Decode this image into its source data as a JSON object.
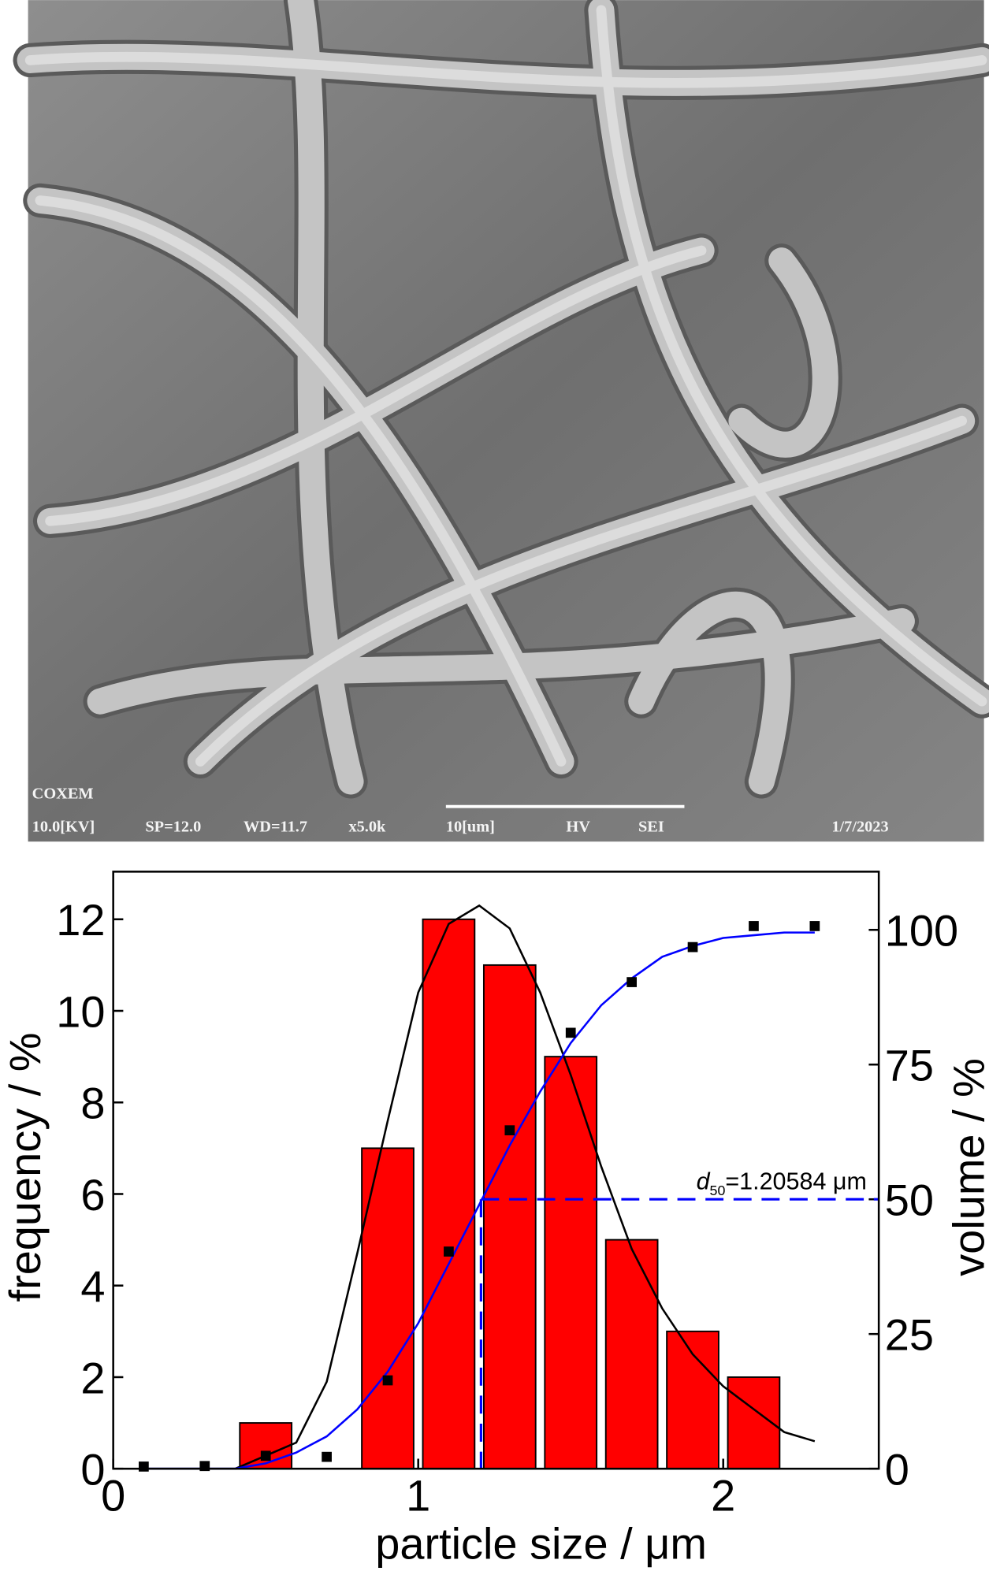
{
  "image": {
    "labels": {
      "brand": "COXEM",
      "kv": "10.0[KV]",
      "sp": "SP=12.0",
      "wd": "WD=11.7",
      "mag": "x5.0k",
      "scale": "10[um]",
      "mode": "HV",
      "detector": "SEI",
      "date": "1/7/2023"
    }
  },
  "chart_data": {
    "type": "bar",
    "x_label": "particle size / μm",
    "y_label": "frequency / %",
    "y2_label": "volume / %",
    "xlim": [
      0,
      2.51
    ],
    "xticks": [
      0,
      1,
      2
    ],
    "ylim": [
      0,
      13.04
    ],
    "yticks": [
      0,
      2,
      4,
      6,
      8,
      10,
      12
    ],
    "y2lim": [
      0,
      110.8
    ],
    "y2ticks": [
      0,
      25,
      50,
      75,
      100
    ],
    "grid": false,
    "series": [
      {
        "type": "bar",
        "color": "#ff0000",
        "x": [
          0.5,
          0.9,
          1.1,
          1.3,
          1.5,
          1.7,
          1.9,
          2.1
        ],
        "values": [
          1,
          7,
          12,
          11,
          9,
          5,
          3,
          2
        ]
      },
      {
        "type": "line",
        "color": "#000000",
        "x": [
          0.1,
          0.4,
          0.6,
          0.7,
          0.8,
          0.9,
          1.0,
          1.1,
          1.2,
          1.3,
          1.4,
          1.5,
          1.6,
          1.7,
          1.8,
          1.9,
          2.0,
          2.1,
          2.2,
          2.3
        ],
        "values": [
          0,
          0,
          0.57,
          1.9,
          4.7,
          7.6,
          10.4,
          11.9,
          12.3,
          11.8,
          10.4,
          8.6,
          6.6,
          4.8,
          3.5,
          2.5,
          1.8,
          1.3,
          0.8,
          0.6
        ]
      },
      {
        "type": "line",
        "axis": "y2",
        "color": "#0000ff",
        "x": [
          0.1,
          0.4,
          0.5,
          0.6,
          0.7,
          0.8,
          0.9,
          1.0,
          1.1,
          1.2,
          1.3,
          1.4,
          1.5,
          1.6,
          1.7,
          1.8,
          1.9,
          2.0,
          2.1,
          2.2,
          2.3
        ],
        "values": [
          0,
          0,
          1,
          3,
          6,
          11,
          18,
          27,
          38,
          49,
          60,
          70,
          79,
          86,
          91,
          95,
          97,
          98.5,
          99,
          99.5,
          99.5
        ]
      },
      {
        "type": "scatter",
        "axis": "y2",
        "color": "#000000",
        "x": [
          0.1,
          0.3,
          0.5,
          0.7,
          0.9,
          1.1,
          1.3,
          1.5,
          1.7,
          1.9,
          2.1,
          2.3
        ],
        "values": [
          0.4,
          0.5,
          2.4,
          2.2,
          16.4,
          40.3,
          62.8,
          80.9,
          90.3,
          96.8,
          100.7,
          100.7
        ]
      }
    ],
    "annotation": {
      "italic": "d",
      "subscript": "50",
      "text": "=1.20584 μm",
      "x": 1.20584,
      "y": 50
    }
  }
}
